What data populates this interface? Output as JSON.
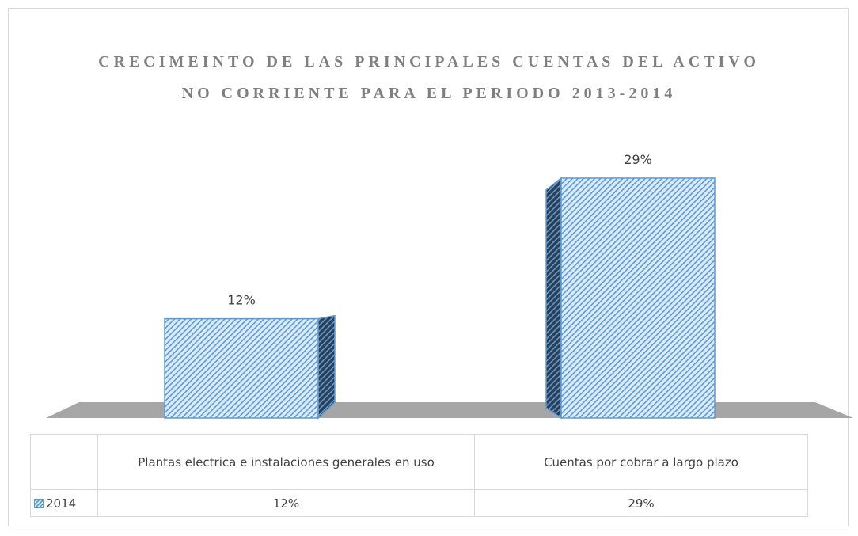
{
  "chart_data": {
    "type": "bar3d",
    "title": "CRECIMEINTO DE LAS PRINCIPALES CUENTAS DEL ACTIVO NO CORRIENTE PARA EL PERIODO 2013-2014",
    "categories": [
      "Plantas electrica e instalaciones generales en uso",
      "Cuentas por cobrar a largo plazo"
    ],
    "series": [
      {
        "name": "2014",
        "color": "#5b9bd5",
        "values": [
          12,
          29
        ],
        "value_labels": [
          "12%",
          "29%"
        ]
      }
    ],
    "data_table": true
  }
}
